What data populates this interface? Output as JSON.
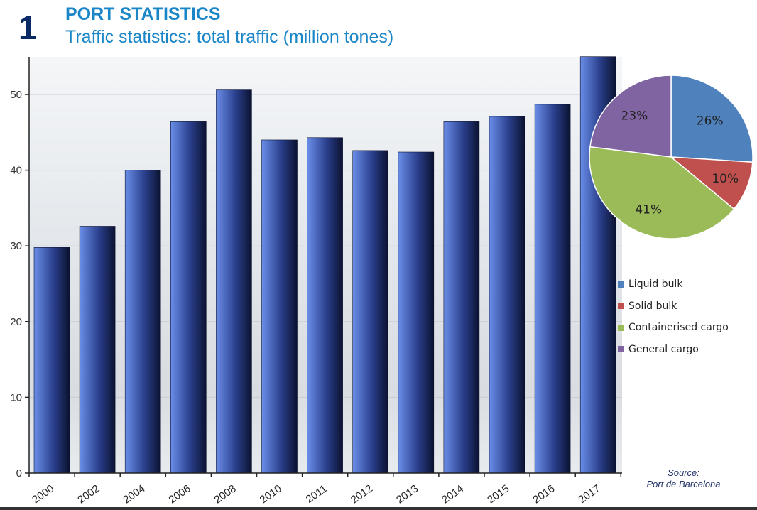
{
  "slide": {
    "number": "1",
    "title": "PORT STATISTICS",
    "subtitle": "Traffic statistics: total traffic (million tones)",
    "source_line1": "Source:",
    "source_line2": "Port de Barcelona"
  },
  "colors": {
    "title": "#1a86c8",
    "bar_light": "#6a8ee8",
    "bar_dark": "#0b1230",
    "liquid_bulk": "#4f81bd",
    "solid_bulk": "#c0504d",
    "containerised": "#9bbb59",
    "general": "#8064a2"
  },
  "chart_data": [
    {
      "type": "bar",
      "categories": [
        "2000",
        "2002",
        "2004",
        "2006",
        "2008",
        "2010",
        "2011",
        "2012",
        "2013",
        "2014",
        "2015",
        "2016",
        "2017"
      ],
      "values": [
        29.8,
        32.6,
        40.0,
        46.4,
        50.6,
        44.0,
        44.3,
        42.6,
        42.4,
        46.4,
        47.1,
        48.7,
        55.0
      ],
      "ylim": [
        0,
        55
      ],
      "yticks": [
        "0",
        "10",
        "20",
        "30",
        "40",
        "50"
      ],
      "xlabel": "",
      "ylabel": "",
      "grid": true
    },
    {
      "type": "pie",
      "labels": [
        "Liquid bulk",
        "Solid bulk",
        "Containerised cargo",
        "General cargo"
      ],
      "values": [
        26,
        10,
        41,
        23
      ],
      "data_labels": [
        "26%",
        "10%",
        "41%",
        "23%"
      ],
      "legend_position": "right"
    }
  ]
}
